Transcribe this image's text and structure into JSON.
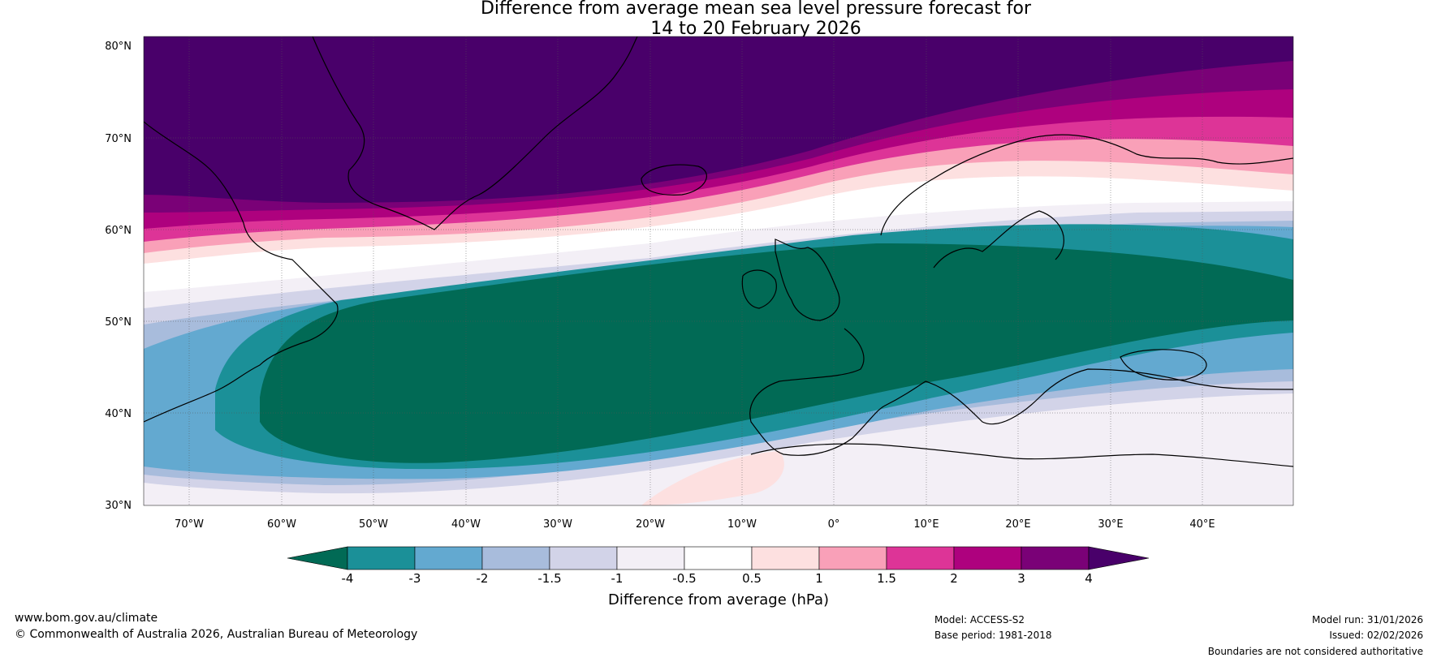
{
  "title": {
    "line1": "Difference from average mean sea level pressure forecast for",
    "line2": "14 to 20 February 2026"
  },
  "map": {
    "lat_labels": [
      "30°N",
      "40°N",
      "50°N",
      "60°N",
      "70°N",
      "80°N"
    ],
    "lon_labels": [
      "70°W",
      "60°W",
      "50°W",
      "40°W",
      "30°W",
      "20°W",
      "10°W",
      "0°",
      "10°E",
      "20°E",
      "30°E",
      "40°E"
    ]
  },
  "legend": {
    "label": "Difference from average (hPa)",
    "tick_labels": [
      "-4",
      "-3",
      "-2",
      "-1.5",
      "-1",
      "-0.5",
      "0.5",
      "1",
      "1.5",
      "2",
      "3",
      "4"
    ],
    "colors": [
      "#016a55",
      "#1b9098",
      "#63a9d0",
      "#a8bcdc",
      "#d2d3e8",
      "#f3eff6",
      "#ffffff",
      "#fde0e0",
      "#f9a0b8",
      "#dd3497",
      "#ae017e",
      "#7a0177",
      "#49006a"
    ]
  },
  "footer": {
    "url": "www.bom.gov.au/climate",
    "copyright": "© Commonwealth of Australia 2026, Australian Bureau of Meteorology",
    "model": "Model: ACCESS-S2",
    "base_period": "Base period: 1981-2018",
    "model_run": "Model run: 31/01/2026",
    "issued": "Issued: 02/02/2026",
    "boundaries": "Boundaries are not considered authoritative"
  }
}
